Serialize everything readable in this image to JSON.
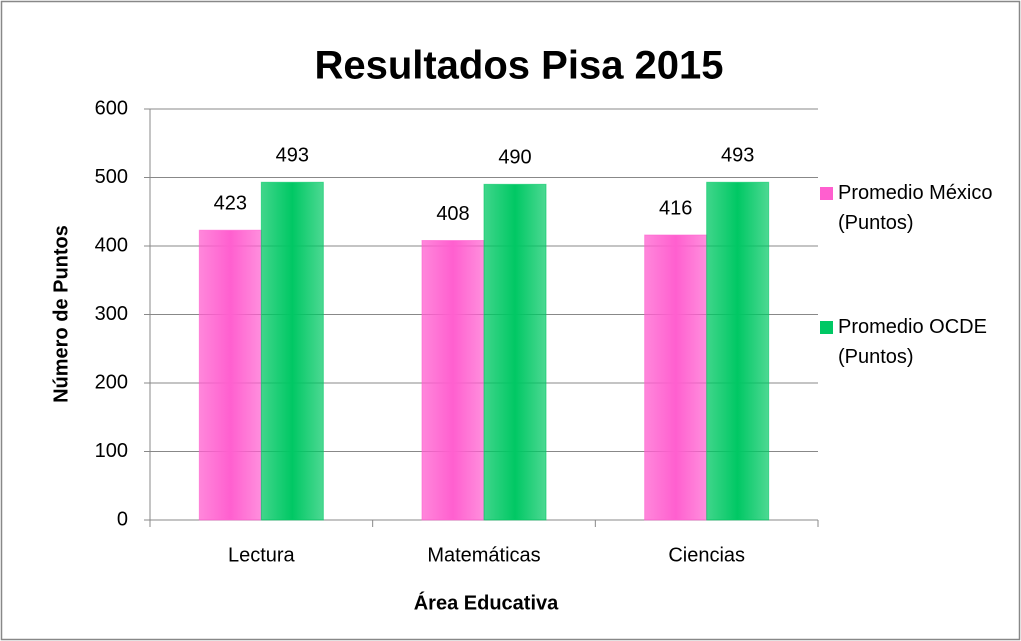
{
  "chart_data": {
    "type": "bar",
    "title": "Resultados Pisa 2015",
    "x_label": "Área Educativa",
    "y_label": "Número de Puntos",
    "categories": [
      "Lectura",
      "Matemáticas",
      "Ciencias"
    ],
    "series": [
      {
        "name": "Promedio México (Puntos)",
        "color": "#ff5fcf",
        "values": [
          423,
          408,
          416
        ]
      },
      {
        "name": "Promedio OCDE (Puntos)",
        "color": "#00c864",
        "values": [
          493,
          490,
          493
        ]
      }
    ],
    "ylim": [
      0,
      600
    ],
    "yticks": [
      0,
      100,
      200,
      300,
      400,
      500,
      600
    ],
    "grid": true,
    "legend": "right"
  }
}
